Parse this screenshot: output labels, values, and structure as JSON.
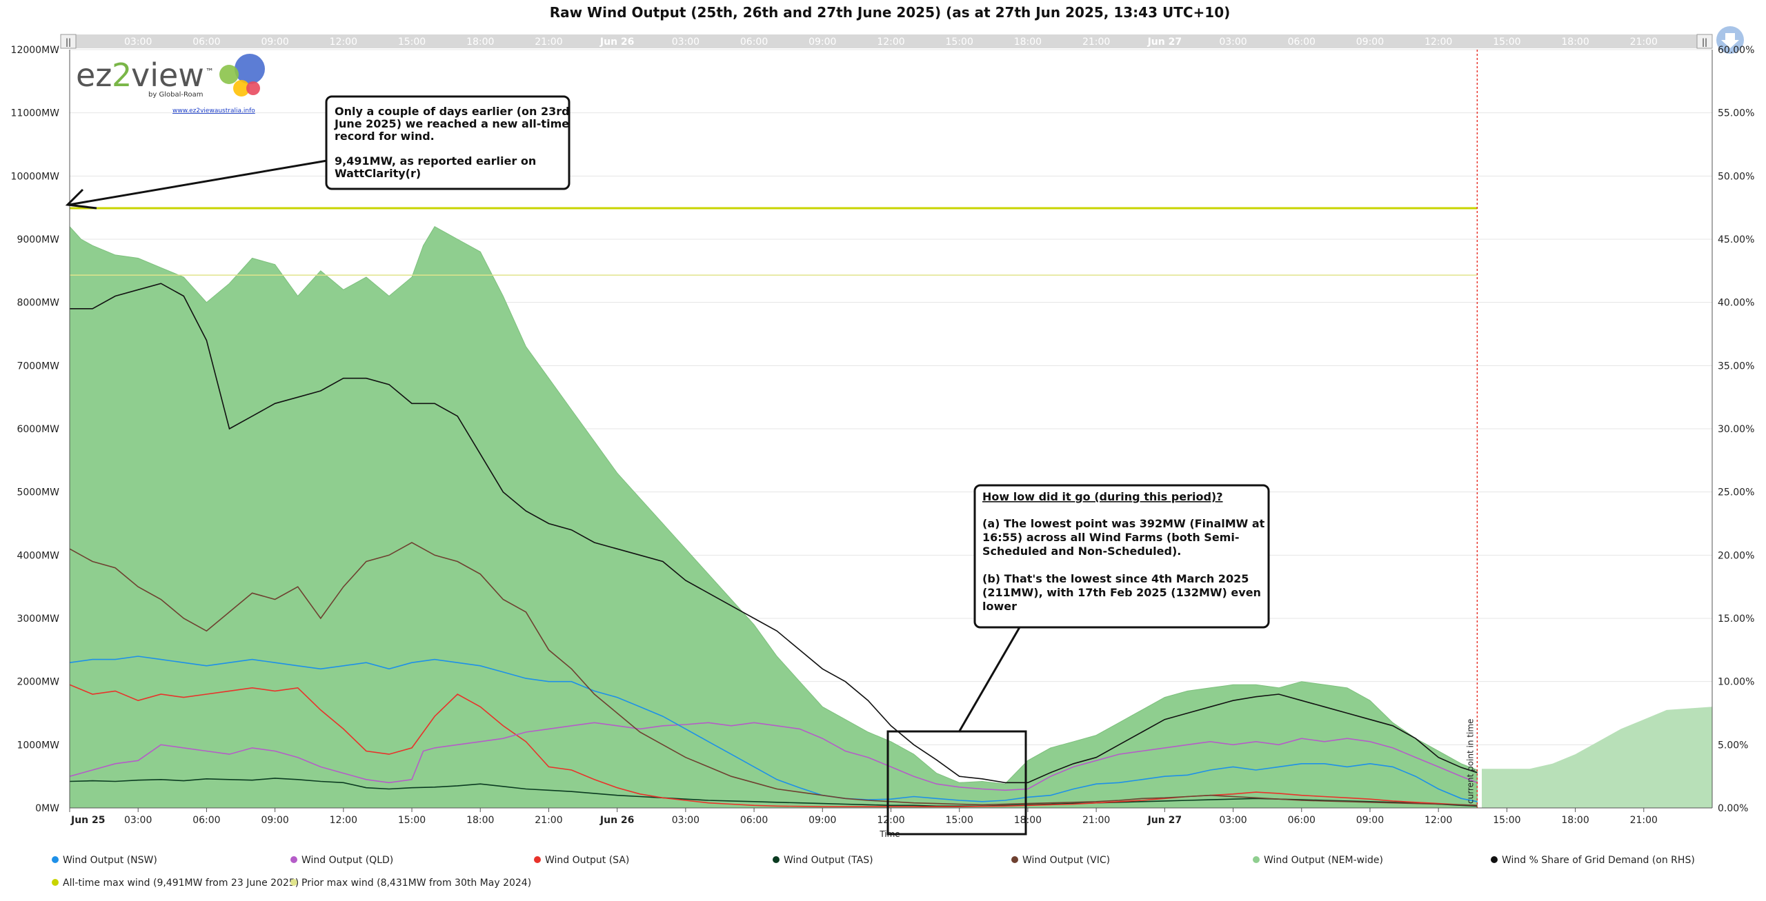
{
  "app": {
    "title": "Raw Wind Output (25th, 26th and 27th June 2025) (as at 27th Jun 2025, 13:43 UTC+10)",
    "logo_text_left": "ez",
    "logo_text_2": "2",
    "logo_text_right": "view",
    "logo_tm": "™",
    "logo_by": "by Global-Roam",
    "logo_url": "www.ez2viewaustralia.info",
    "colors": {
      "nsw": "#1e90e8",
      "qld": "#b55cc8",
      "sa": "#e8322a",
      "tas": "#0a3a20",
      "vic": "#6e4030",
      "nem": "#8fce8f",
      "nem_forecast": "#b8e0b8",
      "share": "#111111",
      "record": "#c8d400",
      "prior": "#e0e48c",
      "current": "#e8322a"
    }
  },
  "chart_data": {
    "type": "area",
    "title": "Raw Wind Output (25th, 26th and 27th June 2025) (as at 27th Jun 2025, 13:43 UTC+10)",
    "xlabel": "Time",
    "ylabel": "",
    "ylim": [
      0,
      12000
    ],
    "y2lim": [
      0,
      60
    ],
    "xlim_hours": [
      0,
      72
    ],
    "grid": true,
    "legend_position": "bottom",
    "y_ticks": [
      "0MW",
      "1000MW",
      "2000MW",
      "3000MW",
      "4000MW",
      "5000MW",
      "6000MW",
      "7000MW",
      "8000MW",
      "9000MW",
      "10000MW",
      "11000MW",
      "12000MW"
    ],
    "y2_ticks": [
      "0.00%",
      "5.00%",
      "10.00%",
      "15.00%",
      "20.00%",
      "25.00%",
      "30.00%",
      "35.00%",
      "40.00%",
      "45.00%",
      "50.00%",
      "55.00%",
      "60.00%"
    ],
    "x_ticks": [
      {
        "h": 0,
        "label": "Jun 25",
        "bold": true
      },
      {
        "h": 3,
        "label": "03:00"
      },
      {
        "h": 6,
        "label": "06:00"
      },
      {
        "h": 9,
        "label": "09:00"
      },
      {
        "h": 12,
        "label": "12:00"
      },
      {
        "h": 15,
        "label": "15:00"
      },
      {
        "h": 18,
        "label": "18:00"
      },
      {
        "h": 21,
        "label": "21:00"
      },
      {
        "h": 24,
        "label": "Jun 26",
        "bold": true
      },
      {
        "h": 27,
        "label": "03:00"
      },
      {
        "h": 30,
        "label": "06:00"
      },
      {
        "h": 33,
        "label": "09:00"
      },
      {
        "h": 36,
        "label": "12:00"
      },
      {
        "h": 39,
        "label": "15:00"
      },
      {
        "h": 42,
        "label": "18:00"
      },
      {
        "h": 45,
        "label": "21:00"
      },
      {
        "h": 48,
        "label": "Jun 27",
        "bold": true
      },
      {
        "h": 51,
        "label": "03:00"
      },
      {
        "h": 54,
        "label": "06:00"
      },
      {
        "h": 57,
        "label": "09:00"
      },
      {
        "h": 60,
        "label": "12:00"
      },
      {
        "h": 63,
        "label": "15:00"
      },
      {
        "h": 66,
        "label": "18:00"
      },
      {
        "h": 69,
        "label": "21:00"
      }
    ],
    "current_time_h": 61.7,
    "current_label": "current point in time",
    "reference_lines": [
      {
        "name": "All-time max wind (9,491MW from 23 June 2025)",
        "value": 9491
      },
      {
        "name": "Prior max wind (8,431MW from 30th May 2024)",
        "value": 8431
      }
    ],
    "series": [
      {
        "name": "Wind Output (NEM-wide)",
        "x": [
          0,
          0.5,
          1,
          2,
          3,
          4,
          5,
          6,
          7,
          8,
          9,
          10,
          11,
          12,
          13,
          14,
          15,
          15.5,
          16,
          16.5,
          17,
          18,
          19,
          20,
          21,
          22,
          23,
          24,
          25,
          26,
          27,
          28,
          29,
          30,
          31,
          32,
          33,
          34,
          35,
          36,
          37,
          38,
          39,
          40,
          41,
          42,
          43,
          44,
          45,
          46,
          47,
          48,
          49,
          50,
          51,
          52,
          53,
          54,
          55,
          56,
          57,
          58,
          59,
          60,
          61,
          61.7
        ],
        "values": [
          9200,
          9000,
          8900,
          8750,
          8700,
          8550,
          8400,
          8000,
          8300,
          8700,
          8600,
          8100,
          8500,
          8200,
          8400,
          8100,
          8400,
          8900,
          9200,
          9100,
          9000,
          8800,
          8100,
          7300,
          6800,
          6300,
          5800,
          5300,
          4900,
          4500,
          4100,
          3700,
          3300,
          2900,
          2400,
          2000,
          1600,
          1400,
          1200,
          1050,
          850,
          550,
          400,
          420,
          380,
          750,
          950,
          1050,
          1150,
          1350,
          1550,
          1750,
          1850,
          1900,
          1950,
          1950,
          1900,
          2000,
          1950,
          1900,
          1700,
          1350,
          1100,
          900,
          700,
          600
        ]
      },
      {
        "name": "Wind Output (NEM-wide) forecast",
        "x": [
          61.9,
          63,
          64,
          65,
          66,
          67,
          68,
          69,
          70,
          72
        ],
        "values": [
          620,
          620,
          620,
          700,
          850,
          1050,
          1250,
          1400,
          1550,
          1600
        ]
      },
      {
        "name": "Wind Output (TAS)",
        "x": [
          0,
          1,
          2,
          3,
          4,
          5,
          6,
          7,
          8,
          9,
          10,
          11,
          12,
          13,
          14,
          15,
          16,
          17,
          18,
          19,
          20,
          21,
          22,
          23,
          24,
          25,
          26,
          27,
          28,
          29,
          30,
          31,
          32,
          33,
          34,
          35,
          36,
          37,
          38,
          39,
          40,
          41,
          42,
          43,
          44,
          45,
          46,
          47,
          48,
          49,
          50,
          51,
          52,
          53,
          54,
          55,
          56,
          57,
          58,
          59,
          60,
          61,
          61.7
        ],
        "values": [
          420,
          430,
          420,
          440,
          450,
          430,
          460,
          450,
          440,
          470,
          450,
          420,
          400,
          320,
          300,
          320,
          330,
          350,
          380,
          340,
          300,
          280,
          260,
          230,
          200,
          180,
          160,
          140,
          120,
          110,
          100,
          90,
          80,
          70,
          60,
          50,
          40,
          40,
          30,
          30,
          30,
          40,
          50,
          60,
          70,
          80,
          90,
          100,
          110,
          120,
          130,
          140,
          150,
          140,
          130,
          120,
          110,
          100,
          90,
          80,
          60,
          40,
          30
        ]
      },
      {
        "name": "Wind Output (SA)",
        "x": [
          0,
          1,
          2,
          3,
          4,
          5,
          6,
          7,
          8,
          9,
          10,
          11,
          12,
          13,
          14,
          15,
          16,
          17,
          18,
          19,
          20,
          21,
          22,
          23,
          24,
          25,
          26,
          27,
          28,
          29,
          30,
          31,
          32,
          33,
          34,
          35,
          36,
          37,
          38,
          39,
          40,
          41,
          42,
          43,
          44,
          45,
          46,
          47,
          48,
          49,
          50,
          51,
          52,
          53,
          54,
          55,
          56,
          57,
          58,
          59,
          60,
          61,
          61.7
        ],
        "values": [
          1950,
          1800,
          1850,
          1700,
          1800,
          1750,
          1800,
          1850,
          1900,
          1850,
          1900,
          1550,
          1250,
          900,
          850,
          950,
          1450,
          1800,
          1600,
          1300,
          1050,
          650,
          600,
          450,
          320,
          220,
          160,
          120,
          80,
          60,
          40,
          30,
          25,
          20,
          20,
          20,
          20,
          20,
          20,
          20,
          25,
          30,
          40,
          50,
          60,
          80,
          100,
          120,
          150,
          180,
          200,
          220,
          250,
          230,
          200,
          180,
          160,
          140,
          110,
          90,
          70,
          50,
          40
        ]
      },
      {
        "name": "Wind Output (QLD)",
        "x": [
          0,
          1,
          2,
          3,
          4,
          5,
          6,
          7,
          8,
          9,
          10,
          11,
          12,
          13,
          14,
          15,
          15.5,
          16,
          17,
          18,
          19,
          20,
          21,
          22,
          23,
          24,
          25,
          26,
          27,
          28,
          29,
          30,
          31,
          32,
          33,
          34,
          35,
          36,
          37,
          38,
          39,
          40,
          41,
          42,
          43,
          44,
          45,
          46,
          47,
          48,
          49,
          50,
          51,
          52,
          53,
          54,
          55,
          56,
          57,
          58,
          59,
          60,
          61,
          61.7
        ],
        "values": [
          500,
          600,
          700,
          750,
          1000,
          950,
          900,
          850,
          950,
          900,
          800,
          650,
          550,
          450,
          400,
          450,
          900,
          950,
          1000,
          1050,
          1100,
          1200,
          1250,
          1300,
          1350,
          1300,
          1250,
          1300,
          1320,
          1350,
          1300,
          1350,
          1300,
          1250,
          1100,
          900,
          800,
          650,
          500,
          380,
          330,
          300,
          280,
          300,
          500,
          650,
          750,
          850,
          900,
          950,
          1000,
          1050,
          1000,
          1050,
          1000,
          1100,
          1050,
          1100,
          1050,
          950,
          800,
          650,
          500,
          400
        ]
      },
      {
        "name": "Wind Output (NSW)",
        "x": [
          0,
          1,
          2,
          3,
          4,
          5,
          6,
          7,
          8,
          9,
          10,
          11,
          12,
          13,
          14,
          15,
          16,
          17,
          18,
          19,
          20,
          21,
          22,
          23,
          24,
          25,
          26,
          27,
          28,
          29,
          30,
          31,
          32,
          33,
          34,
          35,
          36,
          37,
          38,
          39,
          40,
          41,
          42,
          43,
          44,
          45,
          46,
          47,
          48,
          49,
          50,
          51,
          52,
          53,
          54,
          55,
          56,
          57,
          58,
          59,
          60,
          61,
          61.7
        ],
        "values": [
          2300,
          2350,
          2350,
          2400,
          2350,
          2300,
          2250,
          2300,
          2350,
          2300,
          2250,
          2200,
          2250,
          2300,
          2200,
          2300,
          2350,
          2300,
          2250,
          2150,
          2050,
          2000,
          2000,
          1850,
          1750,
          1600,
          1450,
          1250,
          1050,
          850,
          650,
          450,
          320,
          200,
          150,
          130,
          140,
          180,
          150,
          120,
          100,
          120,
          170,
          200,
          300,
          380,
          400,
          450,
          500,
          520,
          600,
          650,
          600,
          650,
          700,
          700,
          650,
          700,
          650,
          500,
          300,
          150,
          100
        ]
      },
      {
        "name": "Wind Output (VIC)",
        "x": [
          0,
          1,
          2,
          3,
          4,
          5,
          6,
          7,
          8,
          9,
          10,
          11,
          12,
          13,
          14,
          15,
          16,
          17,
          18,
          19,
          20,
          21,
          22,
          23,
          24,
          25,
          26,
          27,
          28,
          29,
          30,
          31,
          32,
          33,
          34,
          35,
          36,
          37,
          38,
          39,
          40,
          41,
          42,
          43,
          44,
          45,
          46,
          47,
          48,
          49,
          50,
          51,
          52,
          53,
          54,
          55,
          56,
          57,
          58,
          59,
          60,
          61,
          61.7
        ],
        "values": [
          4100,
          3900,
          3800,
          3500,
          3300,
          3000,
          2800,
          3100,
          3400,
          3300,
          3500,
          3000,
          3500,
          3900,
          4000,
          4200,
          4000,
          3900,
          3700,
          3300,
          3100,
          2500,
          2200,
          1800,
          1500,
          1200,
          1000,
          800,
          650,
          500,
          400,
          300,
          250,
          200,
          150,
          120,
          100,
          80,
          70,
          60,
          50,
          60,
          70,
          80,
          90,
          100,
          120,
          150,
          160,
          180,
          200,
          180,
          160,
          140,
          120,
          110,
          100,
          90,
          80,
          70,
          60,
          50,
          40
        ]
      },
      {
        "name": "Wind % Share of Grid Demand (on RHS)",
        "x": [
          0,
          1,
          2,
          3,
          4,
          5,
          6,
          7,
          8,
          9,
          10,
          11,
          12,
          13,
          14,
          15,
          16,
          17,
          18,
          19,
          20,
          21,
          22,
          23,
          24,
          25,
          26,
          27,
          28,
          29,
          30,
          31,
          32,
          33,
          34,
          35,
          36,
          37,
          38,
          39,
          40,
          41,
          42,
          43,
          44,
          45,
          46,
          47,
          48,
          49,
          50,
          51,
          52,
          53,
          54,
          55,
          56,
          57,
          58,
          59,
          60,
          61,
          61.7
        ],
        "values": [
          39.5,
          39.5,
          40.5,
          41,
          41.5,
          40.5,
          37,
          30,
          31,
          32,
          32.5,
          33,
          34,
          34,
          33.5,
          32,
          32,
          31,
          28,
          25,
          23.5,
          22.5,
          22,
          21,
          20.5,
          20,
          19.5,
          18,
          17,
          16,
          15,
          14,
          12.5,
          11,
          10,
          8.5,
          6.5,
          5,
          3.8,
          2.5,
          2.3,
          2,
          2,
          2.8,
          3.5,
          4,
          5,
          6,
          7,
          7.5,
          8,
          8.5,
          8.8,
          9,
          8.5,
          8,
          7.5,
          7,
          6.5,
          5.5,
          4,
          3.2,
          2.8
        ]
      }
    ]
  },
  "annotations": {
    "record_box": [
      "Only a couple of days earlier (on 23rd",
      "June 2025) we reached a new all-time",
      "record for wind.",
      "",
      "9,491MW, as reported earlier on",
      "WattClarity(r)"
    ],
    "low_box_heading": "How low did it go (during this period)?",
    "low_box": [
      "(a)  The lowest point was 392MW (FinalMW at",
      "16:55) across all Wind Farms (both Semi-",
      "Scheduled and Non-Scheduled).",
      "",
      "(b)  That's the lowest since 4th March 2025",
      "(211MW), with 17th Feb 2025 (132MW) even",
      "lower"
    ]
  },
  "legend": [
    {
      "label": "Wind Output (NSW)",
      "color": "#1e90e8"
    },
    {
      "label": "Wind Output (QLD)",
      "color": "#b55cc8"
    },
    {
      "label": "Wind Output (SA)",
      "color": "#e8322a"
    },
    {
      "label": "Wind Output (TAS)",
      "color": "#0a3a20"
    },
    {
      "label": "Wind Output (VIC)",
      "color": "#6e4030"
    },
    {
      "label": "Wind Output (NEM-wide)",
      "color": "#8fce8f"
    },
    {
      "label": "Wind % Share of Grid Demand (on RHS)",
      "color": "#111111"
    },
    {
      "label": "All-time max wind (9,491MW from 23 June 2025)",
      "color": "#c8d400"
    },
    {
      "label": "Prior max wind (8,431MW from 30th May 2024)",
      "color": "#e0e48c"
    }
  ],
  "controls": {
    "download_icon": "download-icon",
    "scroll_handle_left": "||",
    "scroll_handle_right": "||"
  }
}
